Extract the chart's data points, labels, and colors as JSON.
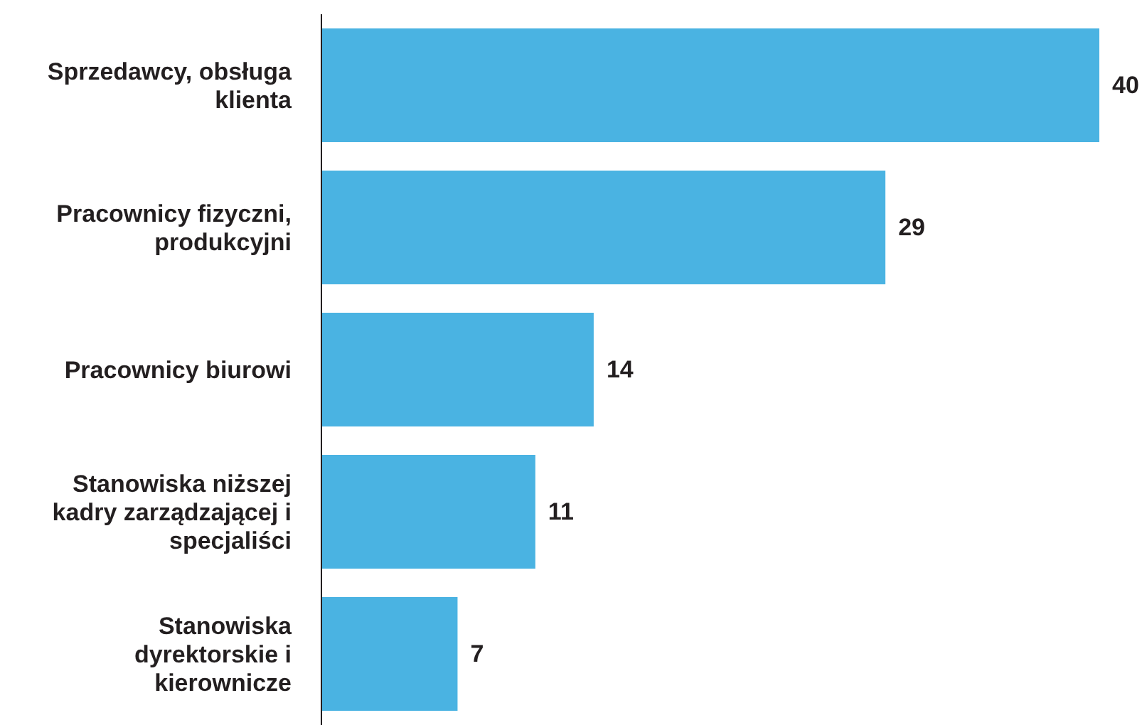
{
  "chart_data": {
    "type": "bar",
    "orientation": "horizontal",
    "categories": [
      "Sprzedawcy, obsługa klienta",
      "Pracownicy fizyczni, produkcyjni",
      "Pracownicy biurowi",
      "Stanowiska niższej kadry zarządzającej i specjaliści",
      "Stanowiska dyrektorskie i kierownicze"
    ],
    "values": [
      40,
      29,
      14,
      11,
      7
    ],
    "color": "#4ab3e2",
    "data_labels": true
  }
}
